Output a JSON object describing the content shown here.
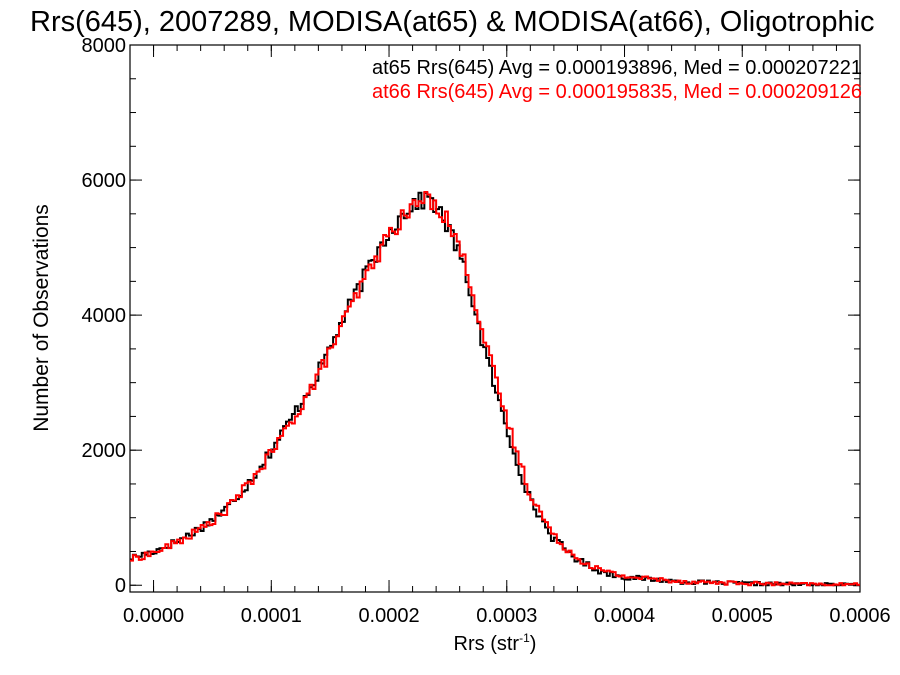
{
  "chart_data": {
    "type": "line",
    "title": "Rrs(645), 2007289, MODISA(at65) & MODISA(at66), Oligotrophic",
    "xlabel": "Rrs (str",
    "xlabel_sup": "-1",
    "xlabel_close": ")",
    "ylabel": "Number of Observations",
    "xlim": [
      -2e-05,
      0.0006
    ],
    "ylim": [
      -100,
      8000
    ],
    "xticks": [
      0.0,
      0.0001,
      0.0002,
      0.0003,
      0.0004,
      0.0005,
      0.0006
    ],
    "xtick_labels": [
      "0.0000",
      "0.0001",
      "0.0002",
      "0.0003",
      "0.0004",
      "0.0005",
      "0.0006"
    ],
    "yticks": [
      0,
      2000,
      4000,
      6000,
      8000
    ],
    "ytick_labels": [
      "0",
      "2000",
      "4000",
      "6000",
      "8000"
    ],
    "annotations": [
      {
        "text": "at65 Rrs(645) Avg = 0.000193896, Med = 0.000207221",
        "color": "#000000"
      },
      {
        "text": "at66 Rrs(645) Avg = 0.000195835, Med = 0.000209126",
        "color": "#ff0000"
      }
    ],
    "series": [
      {
        "name": "at65",
        "color": "#000000",
        "step": "mid",
        "x": [
          -2e-05,
          0.0,
          2e-05,
          4e-05,
          6e-05,
          8e-05,
          0.0001,
          0.00012,
          0.00014,
          0.00016,
          0.00018,
          0.0002,
          0.00021,
          0.00022,
          0.00023,
          0.000235,
          0.00024,
          0.00025,
          0.00026,
          0.00027,
          0.00028,
          0.0003,
          0.00032,
          0.00034,
          0.00036,
          0.00038,
          0.0004,
          0.00045,
          0.0005,
          0.00055,
          0.0006
        ],
        "y": [
          400,
          500,
          650,
          850,
          1100,
          1500,
          2000,
          2550,
          3150,
          3900,
          4600,
          5250,
          5450,
          5650,
          5700,
          5750,
          5600,
          5300,
          4900,
          4300,
          3550,
          2300,
          1250,
          680,
          380,
          200,
          120,
          50,
          25,
          12,
          5
        ]
      },
      {
        "name": "at66",
        "color": "#ff0000",
        "step": "mid",
        "x": [
          -2e-05,
          0.0,
          2e-05,
          4e-05,
          6e-05,
          8e-05,
          0.0001,
          0.00012,
          0.00014,
          0.00016,
          0.00018,
          0.0002,
          0.00021,
          0.00022,
          0.00023,
          0.000235,
          0.00024,
          0.00025,
          0.00026,
          0.00027,
          0.00028,
          0.0003,
          0.00032,
          0.00034,
          0.00036,
          0.00038,
          0.0004,
          0.00045,
          0.0005,
          0.00055,
          0.0006
        ],
        "y": [
          380,
          480,
          630,
          830,
          1080,
          1480,
          1950,
          2500,
          3100,
          3850,
          4550,
          5200,
          5400,
          5600,
          5720,
          5700,
          5650,
          5400,
          5000,
          4450,
          3700,
          2450,
          1350,
          720,
          400,
          220,
          130,
          55,
          28,
          14,
          6
        ]
      }
    ]
  }
}
